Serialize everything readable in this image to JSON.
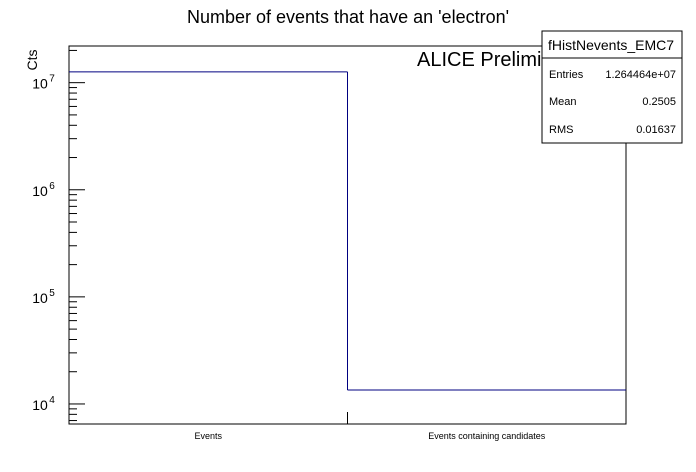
{
  "chart_data": {
    "type": "bar",
    "title": "Number of events that have an 'electron'",
    "xlabel": "",
    "ylabel": "Cts",
    "yscale": "log",
    "ylim": [
      6500,
      22000000
    ],
    "categories": [
      "Events",
      "Events containing candidates"
    ],
    "values": [
      12600000,
      13500
    ],
    "series_color": "#000080",
    "y_ticks": [
      {
        "value": 10000,
        "base": "10",
        "exp": "4"
      },
      {
        "value": 100000,
        "base": "10",
        "exp": "5"
      },
      {
        "value": 1000000,
        "base": "10",
        "exp": "6"
      },
      {
        "value": 10000000,
        "base": "10",
        "exp": "7"
      }
    ],
    "annotation": "ALICE Preliminary",
    "stats_box": {
      "title": "fHistNevents_EMC7",
      "rows": [
        {
          "label": "Entries",
          "value": "1.264464e+07"
        },
        {
          "label": "Mean",
          "value": "0.2505"
        },
        {
          "label": "RMS",
          "value": "0.01637"
        }
      ]
    }
  }
}
